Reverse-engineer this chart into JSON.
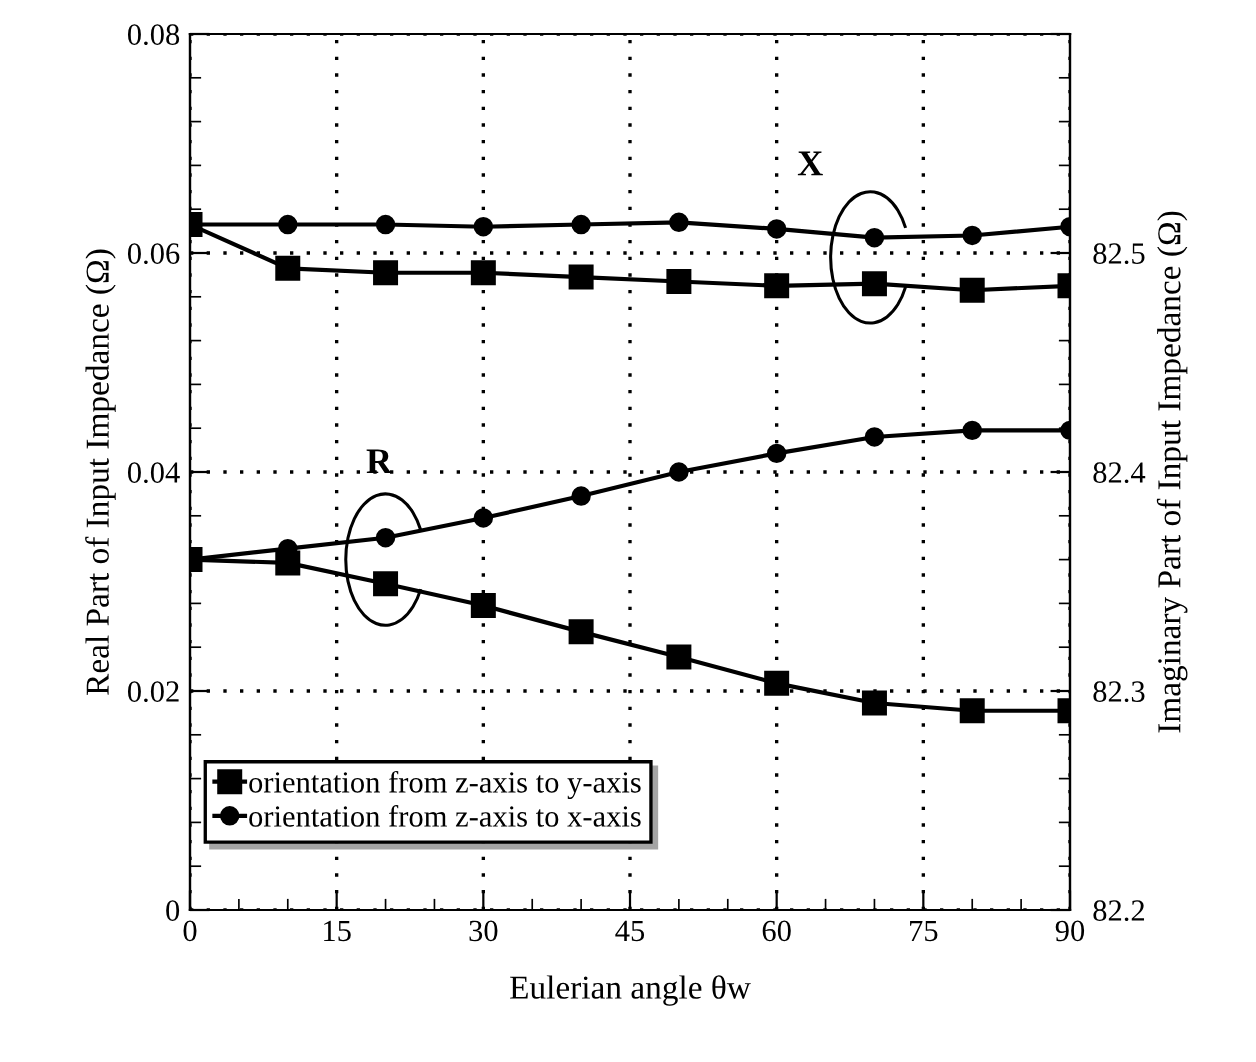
{
  "chart_data": {
    "type": "line",
    "xlabel": "Eulerian angle θw",
    "ylabel": "Real Part of Input Impedance (Ω)",
    "y2label": "Imaginary Part of Input Impedance (Ω)",
    "x": [
      0,
      10,
      20,
      30,
      40,
      50,
      60,
      70,
      80,
      90
    ],
    "series": [
      {
        "name": "orientation from z-axis to y-axis",
        "color": "#000000",
        "marker": "square",
        "values": [
          0.032,
          0.0317,
          0.0298,
          0.0278,
          0.0254,
          0.0231,
          0.0207,
          0.0189,
          0.0182,
          0.0182
        ]
      },
      {
        "name": "orientation from z-axis to x-axis",
        "color": "#000000",
        "marker": "circle",
        "values": [
          0.032,
          0.033,
          0.034,
          0.0358,
          0.0378,
          0.04,
          0.0417,
          0.0432,
          0.0438,
          0.0438
        ]
      },
      {
        "color": "#000000",
        "marker": "square",
        "axis": "y2",
        "values": [
          82.513,
          82.493,
          82.491,
          82.491,
          82.489,
          82.487,
          82.485,
          82.486,
          82.483,
          82.485
        ]
      },
      {
        "color": "#000000",
        "marker": "circle",
        "axis": "y2",
        "values": [
          82.513,
          82.513,
          82.513,
          82.512,
          82.513,
          82.514,
          82.511,
          82.507,
          82.508,
          82.512
        ]
      }
    ],
    "xlim": [
      0,
      90
    ],
    "xticks": [
      0,
      15,
      30,
      45,
      60,
      75,
      90
    ],
    "ylim": [
      0,
      0.08
    ],
    "yticks": [
      0,
      0.02,
      0.04,
      0.06,
      0.08
    ],
    "y2lim": [
      82.2,
      82.6
    ],
    "y2ticks": [
      82.2,
      82.3,
      82.4,
      82.5,
      {
        "value": 82.6,
        "label": null
      }
    ],
    "annotations": [
      "R",
      "X"
    ],
    "grid": true,
    "legend": "bottom left",
    "line_style": "solid"
  }
}
